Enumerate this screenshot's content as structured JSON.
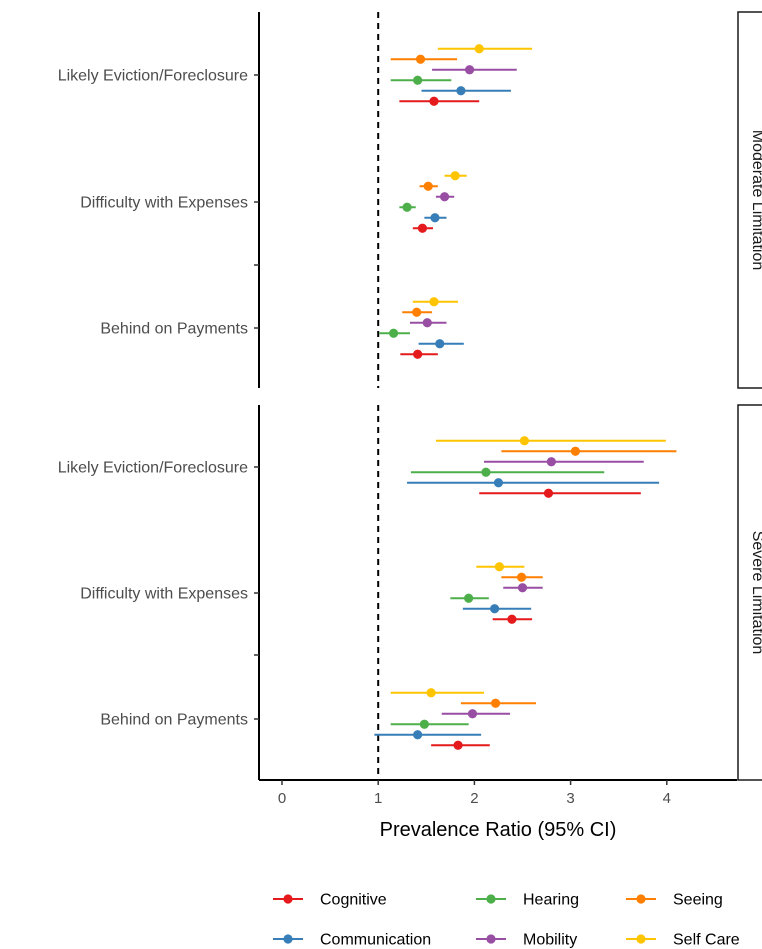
{
  "chart_data": {
    "type": "scatter",
    "subtype": "forest-plot",
    "xlabel": "Prevalence Ratio (95% CI)",
    "xlim": [
      -0.25,
      4.75
    ],
    "xticks": [
      0,
      1,
      2,
      3,
      4
    ],
    "reference_line": 1,
    "categories": [
      "Likely Eviction/Foreclosure",
      "Difficulty with Expenses",
      "Behind on Payments"
    ],
    "series_order": [
      "Self Care",
      "Seeing",
      "Mobility",
      "Hearing",
      "Communication",
      "Cognitive"
    ],
    "colors": {
      "Cognitive": "#E41A1C",
      "Communication": "#377EB8",
      "Hearing": "#4DAF4A",
      "Mobility": "#984EA3",
      "Seeing": "#FF7F00",
      "Self Care": "#FFC400"
    },
    "legend": {
      "position": "bottom",
      "items": [
        "Cognitive",
        "Hearing",
        "Seeing",
        "Communication",
        "Mobility",
        "Self Care"
      ]
    },
    "facets": [
      {
        "label": "Moderate Limitation",
        "rows": [
          {
            "category": "Likely Eviction/Foreclosure",
            "points": [
              {
                "series": "Self Care",
                "est": 2.05,
                "lo": 1.62,
                "hi": 2.6
              },
              {
                "series": "Seeing",
                "est": 1.44,
                "lo": 1.13,
                "hi": 1.82
              },
              {
                "series": "Mobility",
                "est": 1.95,
                "lo": 1.56,
                "hi": 2.44
              },
              {
                "series": "Hearing",
                "est": 1.41,
                "lo": 1.13,
                "hi": 1.76
              },
              {
                "series": "Communication",
                "est": 1.86,
                "lo": 1.45,
                "hi": 2.38
              },
              {
                "series": "Cognitive",
                "est": 1.58,
                "lo": 1.22,
                "hi": 2.05
              }
            ]
          },
          {
            "category": "Difficulty with Expenses",
            "points": [
              {
                "series": "Self Care",
                "est": 1.8,
                "lo": 1.69,
                "hi": 1.92
              },
              {
                "series": "Seeing",
                "est": 1.52,
                "lo": 1.43,
                "hi": 1.62
              },
              {
                "series": "Mobility",
                "est": 1.69,
                "lo": 1.6,
                "hi": 1.79
              },
              {
                "series": "Hearing",
                "est": 1.3,
                "lo": 1.22,
                "hi": 1.39
              },
              {
                "series": "Communication",
                "est": 1.59,
                "lo": 1.48,
                "hi": 1.71
              },
              {
                "series": "Cognitive",
                "est": 1.46,
                "lo": 1.36,
                "hi": 1.57
              }
            ]
          },
          {
            "category": "Behind on Payments",
            "points": [
              {
                "series": "Self Care",
                "est": 1.58,
                "lo": 1.36,
                "hi": 1.83
              },
              {
                "series": "Seeing",
                "est": 1.4,
                "lo": 1.25,
                "hi": 1.56
              },
              {
                "series": "Mobility",
                "est": 1.51,
                "lo": 1.33,
                "hi": 1.71
              },
              {
                "series": "Hearing",
                "est": 1.16,
                "lo": 1.01,
                "hi": 1.33
              },
              {
                "series": "Communication",
                "est": 1.64,
                "lo": 1.42,
                "hi": 1.89
              },
              {
                "series": "Cognitive",
                "est": 1.41,
                "lo": 1.23,
                "hi": 1.62
              }
            ]
          }
        ]
      },
      {
        "label": "Severe Limitation",
        "rows": [
          {
            "category": "Likely Eviction/Foreclosure",
            "points": [
              {
                "series": "Self Care",
                "est": 2.52,
                "lo": 1.6,
                "hi": 3.99
              },
              {
                "series": "Seeing",
                "est": 3.05,
                "lo": 2.28,
                "hi": 4.1
              },
              {
                "series": "Mobility",
                "est": 2.8,
                "lo": 2.1,
                "hi": 3.76
              },
              {
                "series": "Hearing",
                "est": 2.12,
                "lo": 1.34,
                "hi": 3.35
              },
              {
                "series": "Communication",
                "est": 2.25,
                "lo": 1.3,
                "hi": 3.92
              },
              {
                "series": "Cognitive",
                "est": 2.77,
                "lo": 2.05,
                "hi": 3.73
              }
            ]
          },
          {
            "category": "Difficulty with Expenses",
            "points": [
              {
                "series": "Self Care",
                "est": 2.26,
                "lo": 2.02,
                "hi": 2.52
              },
              {
                "series": "Seeing",
                "est": 2.49,
                "lo": 2.28,
                "hi": 2.71
              },
              {
                "series": "Mobility",
                "est": 2.5,
                "lo": 2.3,
                "hi": 2.71
              },
              {
                "series": "Hearing",
                "est": 1.94,
                "lo": 1.75,
                "hi": 2.15
              },
              {
                "series": "Communication",
                "est": 2.21,
                "lo": 1.88,
                "hi": 2.59
              },
              {
                "series": "Cognitive",
                "est": 2.39,
                "lo": 2.19,
                "hi": 2.6
              }
            ]
          },
          {
            "category": "Behind on Payments",
            "points": [
              {
                "series": "Self Care",
                "est": 1.55,
                "lo": 1.13,
                "hi": 2.1
              },
              {
                "series": "Seeing",
                "est": 2.22,
                "lo": 1.86,
                "hi": 2.64
              },
              {
                "series": "Mobility",
                "est": 1.98,
                "lo": 1.66,
                "hi": 2.37
              },
              {
                "series": "Hearing",
                "est": 1.48,
                "lo": 1.13,
                "hi": 1.94
              },
              {
                "series": "Communication",
                "est": 1.41,
                "lo": 0.96,
                "hi": 2.07
              },
              {
                "series": "Cognitive",
                "est": 1.83,
                "lo": 1.55,
                "hi": 2.16
              }
            ]
          }
        ]
      }
    ]
  }
}
